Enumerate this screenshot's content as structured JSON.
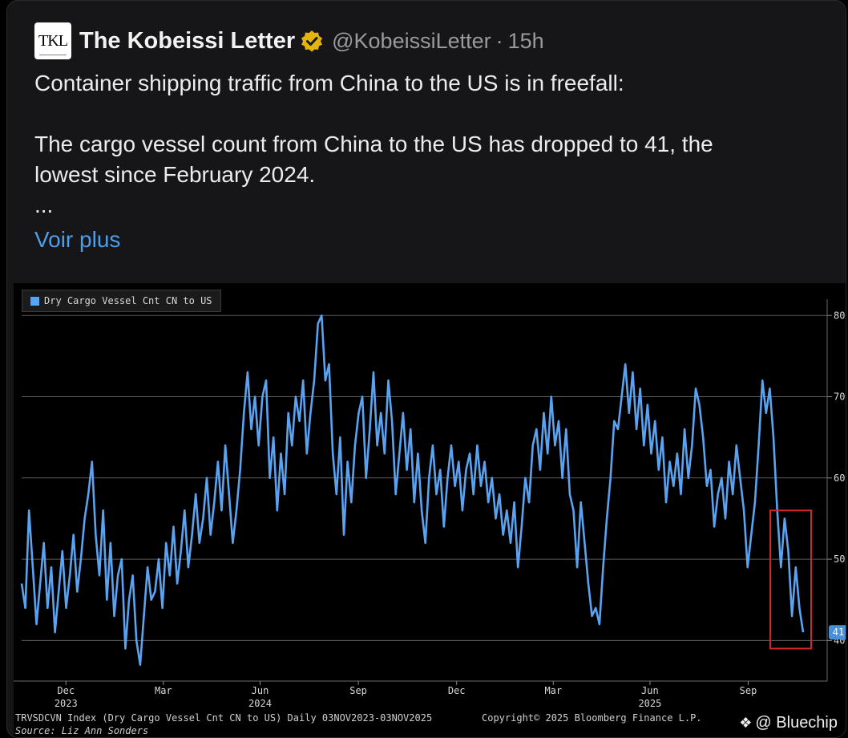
{
  "tweet": {
    "avatar_text": "TKL",
    "author_name": "The Kobeissi Letter",
    "handle": "@KobeissiLetter",
    "separator": "·",
    "time": "15h",
    "line1": "Container shipping traffic from China to the US is in freefall:",
    "line2": "The cargo vessel count from China to the US has dropped to 41, the",
    "line3": "lowest since February 2024.",
    "ellipsis": "...",
    "more_link": "Voir plus",
    "colors": {
      "link": "#4c9eeb",
      "verified": "#e3b30e"
    }
  },
  "chart_data": {
    "type": "line",
    "title": "Dry Cargo Vessel Cnt CN to US",
    "legend": [
      "Dry Cargo Vessel Cnt CN to US"
    ],
    "ylim": [
      35,
      82
    ],
    "yticks": [
      40,
      50,
      60,
      70,
      80
    ],
    "last_value_label": "41",
    "x_ticks": [
      {
        "label": "Dec",
        "year": "2023"
      },
      {
        "label": "Mar",
        "year": ""
      },
      {
        "label": "Jun",
        "year": "2024"
      },
      {
        "label": "Sep",
        "year": ""
      },
      {
        "label": "Dec",
        "year": ""
      },
      {
        "label": "Mar",
        "year": ""
      },
      {
        "label": "Jun",
        "year": "2025"
      },
      {
        "label": "Sep",
        "year": ""
      }
    ],
    "series": [
      {
        "name": "Dry Cargo Vessel Cnt CN to US",
        "color": "#5aa3f0",
        "values": [
          47,
          44,
          56,
          49,
          42,
          47,
          52,
          44,
          49,
          41,
          46,
          51,
          44,
          48,
          53,
          46,
          50,
          55,
          58,
          62,
          53,
          48,
          56,
          45,
          52,
          43,
          48,
          50,
          39,
          45,
          48,
          40,
          37,
          43,
          49,
          45,
          46,
          50,
          44,
          52,
          48,
          54,
          47,
          51,
          56,
          49,
          53,
          58,
          52,
          55,
          60,
          53,
          57,
          62,
          56,
          64,
          58,
          52,
          56,
          61,
          68,
          73,
          66,
          70,
          64,
          70,
          72,
          60,
          65,
          56,
          63,
          58,
          68,
          64,
          70,
          67,
          72,
          63,
          68,
          72,
          79,
          80,
          72,
          74,
          63,
          58,
          65,
          53,
          62,
          57,
          64,
          68,
          70,
          60,
          66,
          73,
          64,
          68,
          63,
          72,
          67,
          58,
          63,
          68,
          61,
          66,
          57,
          63,
          56,
          52,
          60,
          64,
          58,
          61,
          54,
          60,
          64,
          59,
          62,
          56,
          61,
          63,
          58,
          64,
          59,
          62,
          57,
          60,
          55,
          58,
          53,
          56,
          52,
          57,
          49,
          54,
          60,
          57,
          64,
          66,
          61,
          68,
          63,
          70,
          64,
          67,
          60,
          66,
          58,
          56,
          49,
          57,
          52,
          47,
          43,
          44,
          42,
          49,
          55,
          60,
          67,
          66,
          70,
          74,
          68,
          73,
          66,
          71,
          64,
          69,
          63,
          67,
          61,
          65,
          57,
          62,
          59,
          63,
          58,
          66,
          60,
          64,
          71,
          69,
          65,
          59,
          61,
          54,
          58,
          60,
          55,
          62,
          58,
          64,
          60,
          56,
          49,
          53,
          57,
          64,
          72,
          68,
          71,
          65,
          56,
          49,
          55,
          51,
          43,
          49,
          44,
          41
        ]
      }
    ]
  },
  "chart_footer": {
    "index_line": "TRVSDCVN Index (Dry Cargo Vessel Cnt CN to US) Daily 03NOV2023-03NOV2025",
    "copyright": "Copyright© 2025 Bloomberg Finance L.P.",
    "source": "Source: Liz Ann Sonders",
    "watermark": "@ Bluechip"
  }
}
